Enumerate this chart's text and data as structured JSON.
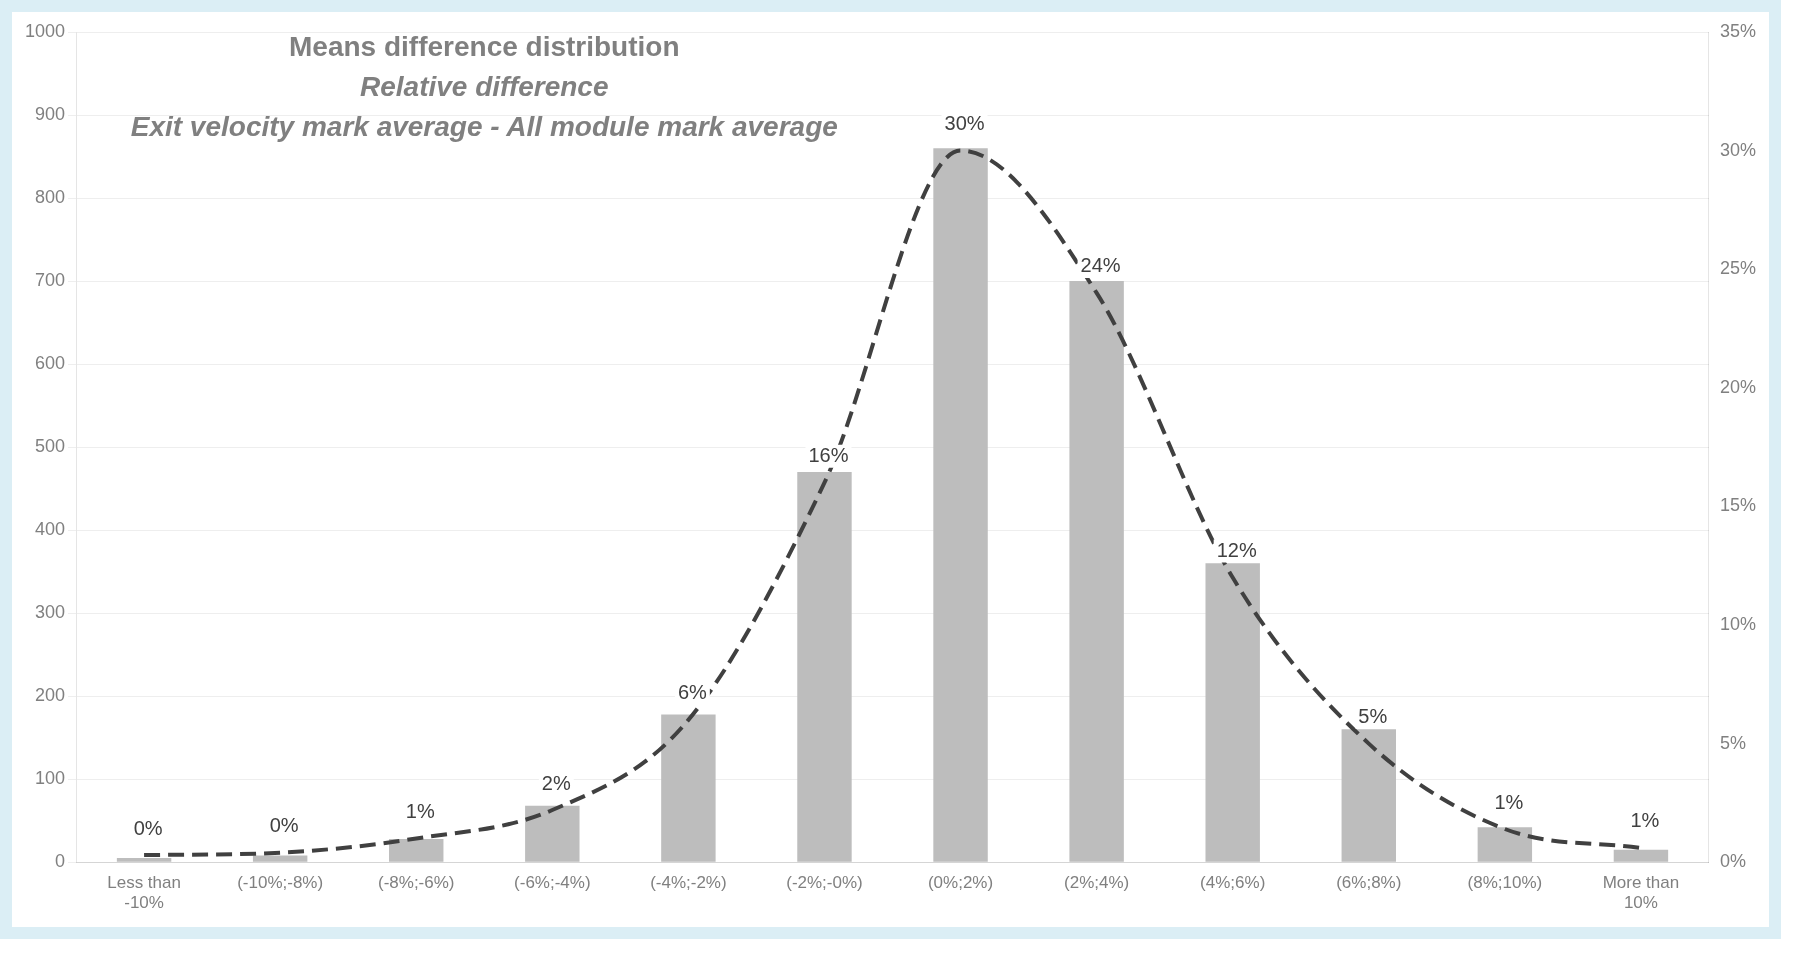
{
  "chart_data": {
    "type": "bar",
    "title": "Means difference distribution",
    "subtitle": "Relative difference",
    "annotations": [
      "Exit velocity mark average - All module mark average"
    ],
    "categories": [
      "Less than -10%",
      "(-10%;-8%)",
      "(-8%;-6%)",
      "(-6%;-4%)",
      "(-4%;-2%)",
      "(-2%;-0%)",
      "(0%;2%)",
      "(2%;4%)",
      "(4%;6%)",
      "(6%;8%)",
      "(8%;10%)",
      "More than 10%"
    ],
    "series": [
      {
        "color": "#bdbdbd",
        "values": [
          5,
          8,
          28,
          68,
          178,
          470,
          860,
          700,
          360,
          160,
          42,
          15
        ]
      },
      {
        "type": "line",
        "axis": "y2",
        "color": "#404040",
        "line_style": "dashed",
        "marker": "none",
        "values": [
          0.3,
          0.4,
          1,
          2.2,
          6,
          16,
          30,
          24,
          12,
          5,
          1.4,
          0.6
        ],
        "value_labels": [
          "0%",
          "0%",
          "1%",
          "2%",
          "6%",
          "16%",
          "30%",
          "24%",
          "12%",
          "5%",
          "1%",
          "1%"
        ]
      }
    ],
    "ylim": [
      0,
      1000
    ],
    "yticks": [
      0,
      100,
      200,
      300,
      400,
      500,
      600,
      700,
      800,
      900,
      1000
    ],
    "y2lim": [
      0,
      35
    ],
    "y2ticks": [
      {
        "value": 0,
        "label": "0%"
      },
      {
        "value": 5,
        "label": "5%"
      },
      {
        "value": 10,
        "label": "10%"
      },
      {
        "value": 15,
        "label": "15%"
      },
      {
        "value": 20,
        "label": "20%"
      },
      {
        "value": 25,
        "label": "25%"
      },
      {
        "value": 30,
        "label": "30%"
      },
      {
        "value": 35,
        "label": "35%"
      }
    ],
    "grid": "y",
    "legend": false
  }
}
